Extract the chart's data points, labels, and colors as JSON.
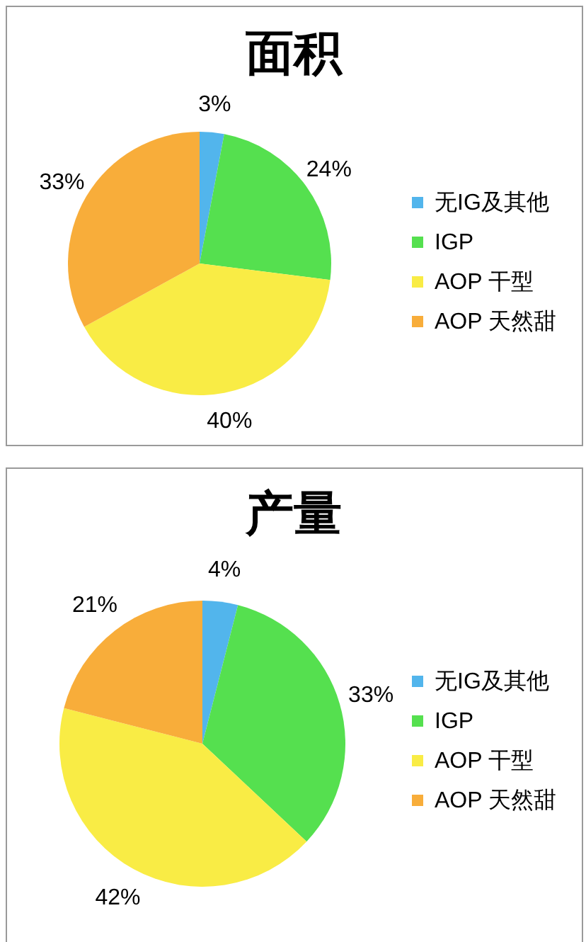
{
  "chart_data": [
    {
      "type": "pie",
      "title": "面积",
      "categories": [
        "无IG及其他",
        "IGP",
        "AOP 干型",
        "AOP 天然甜"
      ],
      "values": [
        3,
        24,
        40,
        33
      ],
      "colors": [
        "#52b5ec",
        "#55e04f",
        "#f9ec45",
        "#f8ad3a"
      ],
      "value_labels": [
        "3%",
        "24%",
        "40%",
        "33%"
      ],
      "legend": "right"
    },
    {
      "type": "pie",
      "title": "产量",
      "categories": [
        "无IG及其他",
        "IGP",
        "AOP 干型",
        "AOP 天然甜"
      ],
      "values": [
        4,
        33,
        42,
        21
      ],
      "colors": [
        "#52b5ec",
        "#55e04f",
        "#f9ec45",
        "#f8ad3a"
      ],
      "value_labels": [
        "4%",
        "33%",
        "42%",
        "21%"
      ],
      "legend": "right"
    }
  ]
}
